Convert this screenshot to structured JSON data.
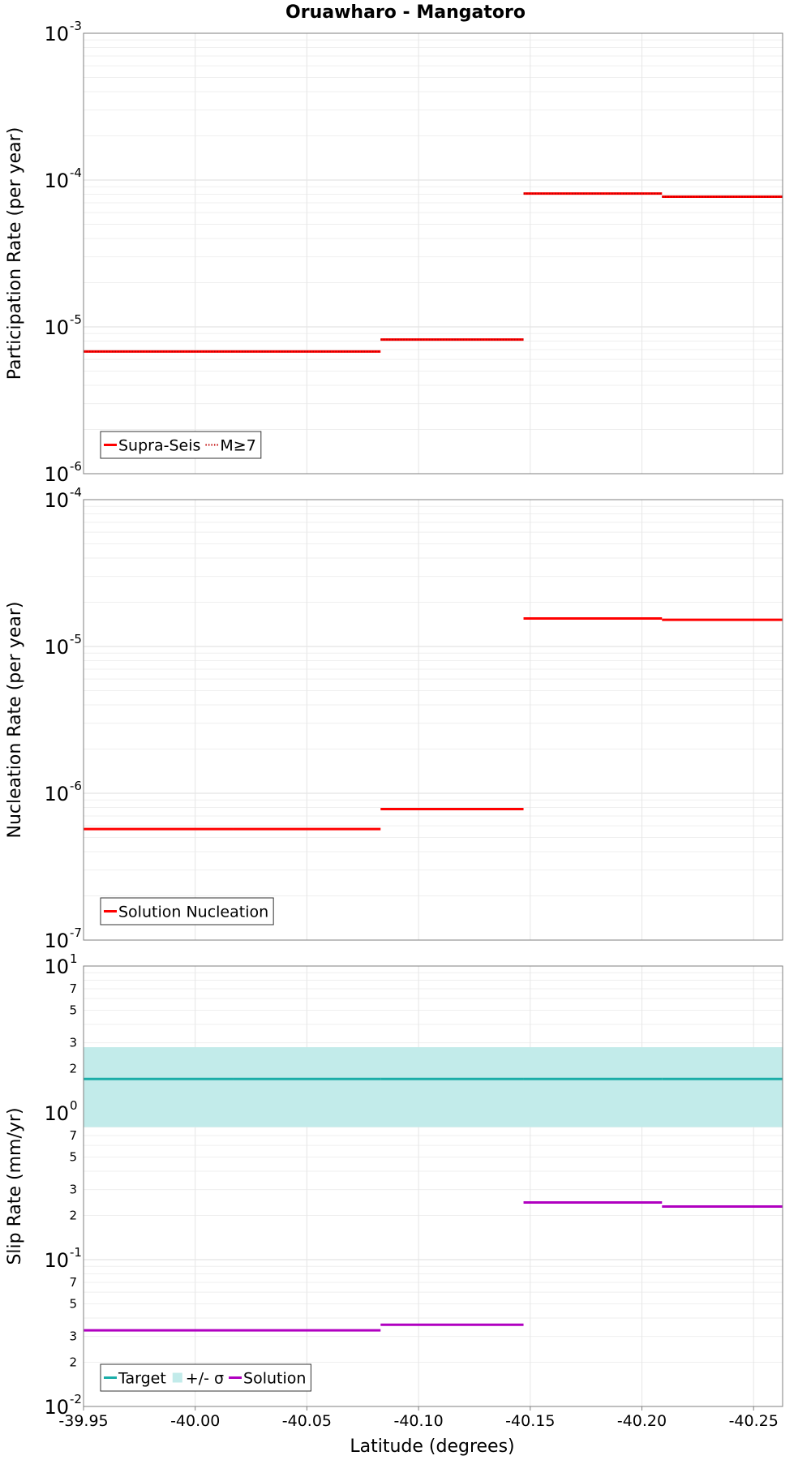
{
  "chart_data": {
    "title": "Oruawharo - Mangatoro",
    "xlabel": "Latitude (degrees)",
    "x_range": [
      -39.95,
      -40.263
    ],
    "x_ticks": [
      -39.95,
      -40.0,
      -40.05,
      -40.1,
      -40.15,
      -40.2,
      -40.25
    ],
    "x_tick_labels": [
      "-39.95",
      "-40.00",
      "-40.05",
      "-40.10",
      "-40.15",
      "-40.20",
      "-40.25"
    ],
    "panels": [
      {
        "type": "line",
        "scale": "log",
        "ylabel": "Participation Rate (per year)",
        "ylim": [
          1e-06,
          0.001
        ],
        "decade_labels": [
          {
            "base": "10",
            "exp": "-6"
          },
          {
            "base": "10",
            "exp": "-5"
          },
          {
            "base": "10",
            "exp": "-4"
          },
          {
            "base": "10",
            "exp": "-3"
          }
        ],
        "minor_labels": [],
        "series": [
          {
            "name": "Supra-Seis",
            "color": "#ff0000",
            "style": "solid",
            "segments": [
              [
                -39.95,
                -40.017,
                6.8e-06
              ],
              [
                -40.017,
                -40.083,
                6.8e-06
              ],
              [
                -40.083,
                -40.147,
                8.2e-06
              ],
              [
                -40.147,
                -40.209,
                8.1e-05
              ],
              [
                -40.209,
                -40.263,
                7.7e-05
              ]
            ]
          },
          {
            "name": "M≥7",
            "color": "#ff0000",
            "style": "dotted",
            "segments": [
              [
                -39.95,
                -40.017,
                6.8e-06
              ],
              [
                -40.017,
                -40.083,
                6.8e-06
              ],
              [
                -40.083,
                -40.147,
                8.2e-06
              ],
              [
                -40.147,
                -40.209,
                8.1e-05
              ],
              [
                -40.209,
                -40.263,
                7.7e-05
              ]
            ]
          }
        ],
        "legend": [
          {
            "label": "Supra-Seis",
            "color": "#ff0000",
            "kind": "line"
          },
          {
            "label": "M≥7",
            "color": "#ff0000",
            "kind": "dotted"
          }
        ]
      },
      {
        "type": "line",
        "scale": "log",
        "ylabel": "Nucleation Rate (per year)",
        "ylim": [
          1e-07,
          0.0001
        ],
        "decade_labels": [
          {
            "base": "10",
            "exp": "-7"
          },
          {
            "base": "10",
            "exp": "-6"
          },
          {
            "base": "10",
            "exp": "-5"
          },
          {
            "base": "10",
            "exp": "-4"
          }
        ],
        "minor_labels": [],
        "series": [
          {
            "name": "Solution Nucleation",
            "color": "#ff0000",
            "style": "solid",
            "segments": [
              [
                -39.95,
                -40.017,
                5.7e-07
              ],
              [
                -40.017,
                -40.083,
                5.7e-07
              ],
              [
                -40.083,
                -40.147,
                7.8e-07
              ],
              [
                -40.147,
                -40.209,
                1.55e-05
              ],
              [
                -40.209,
                -40.263,
                1.52e-05
              ]
            ]
          }
        ],
        "legend": [
          {
            "label": "Solution Nucleation",
            "color": "#ff0000",
            "kind": "line"
          }
        ]
      },
      {
        "type": "line",
        "scale": "log",
        "ylabel": "Slip Rate (mm/yr)",
        "ylim": [
          0.01,
          10
        ],
        "decade_labels": [
          {
            "base": "10",
            "exp": "-2"
          },
          {
            "base": "10",
            "exp": "-1"
          },
          {
            "base": "10",
            "exp": "0"
          },
          {
            "base": "10",
            "exp": "1"
          }
        ],
        "minor_labels": [
          "2",
          "3",
          "5",
          "7"
        ],
        "band": {
          "name": "+/- σ",
          "low": 0.8,
          "high": 2.8,
          "color": "#c2ebea"
        },
        "series": [
          {
            "name": "Target",
            "color": "#1aada8",
            "style": "solid",
            "segments": [
              [
                -39.95,
                -40.017,
                1.7
              ],
              [
                -40.017,
                -40.083,
                1.7
              ],
              [
                -40.083,
                -40.147,
                1.7
              ],
              [
                -40.147,
                -40.209,
                1.7
              ],
              [
                -40.209,
                -40.263,
                1.7
              ]
            ]
          },
          {
            "name": "Solution",
            "color": "#b000c0",
            "style": "solid",
            "segments": [
              [
                -39.95,
                -40.017,
                0.033
              ],
              [
                -40.017,
                -40.083,
                0.033
              ],
              [
                -40.083,
                -40.147,
                0.036
              ],
              [
                -40.147,
                -40.209,
                0.245
              ],
              [
                -40.209,
                -40.263,
                0.23
              ]
            ]
          }
        ],
        "legend": [
          {
            "label": "Target",
            "color": "#1aada8",
            "kind": "line"
          },
          {
            "label": "+/- σ",
            "color": "#c2ebea",
            "kind": "box"
          },
          {
            "label": "Solution",
            "color": "#b000c0",
            "kind": "line"
          }
        ]
      }
    ]
  }
}
